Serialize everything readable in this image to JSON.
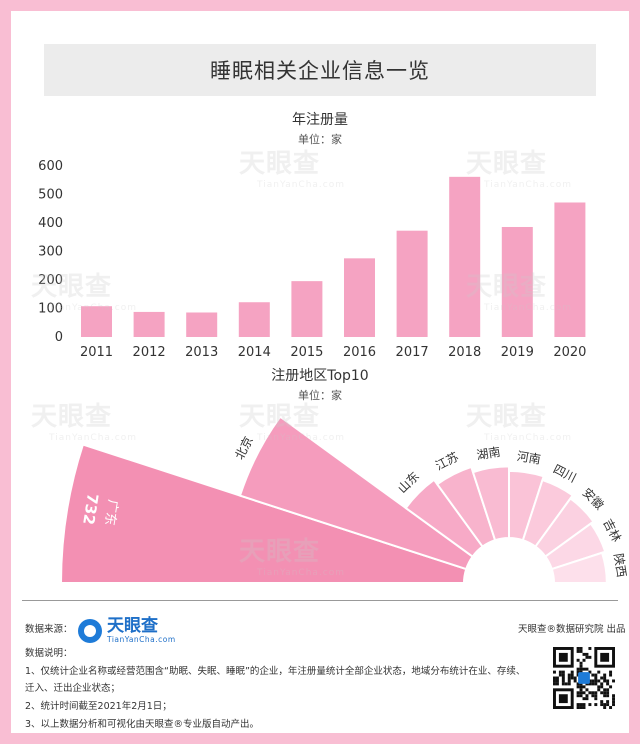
{
  "page": {
    "title": "睡眠相关企业信息一览",
    "watermark": {
      "cn": "天眼查",
      "en": "TianYanCha.com"
    }
  },
  "chart_data": [
    {
      "type": "bar",
      "title": "年注册量",
      "unit": "单位：家",
      "categories": [
        "2011",
        "2012",
        "2013",
        "2014",
        "2015",
        "2016",
        "2017",
        "2018",
        "2019",
        "2020"
      ],
      "values": [
        108,
        88,
        86,
        122,
        196,
        276,
        373,
        562,
        386,
        472
      ],
      "ylim": [
        0,
        600
      ],
      "yticks": [
        "0",
        "100",
        "200",
        "300",
        "400",
        "500",
        "600"
      ],
      "grid": false,
      "color": "#f5a3c2"
    },
    {
      "type": "pie",
      "title": "注册地区Top10",
      "unit": "单位：家",
      "categories": [
        "广东",
        "北京",
        "山东",
        "江苏",
        "湖南",
        "河南",
        "四川",
        "安徽",
        "吉林",
        "陕西"
      ],
      "values": [
        732,
        432,
        150,
        140,
        130,
        122,
        115,
        108,
        102,
        96
      ],
      "value_labels": [
        "732",
        "",
        "",
        "",
        "",
        "",
        "",
        "",
        "",
        ""
      ],
      "colors": [
        "#f390b3",
        "#f59cbd",
        "#f7aac7",
        "#f8b3cc",
        "#f9bbd2",
        "#fac3d7",
        "#fbcadc",
        "#fbd1e1",
        "#fcd8e6",
        "#fde0eb"
      ]
    }
  ],
  "footer": {
    "source_label": "数据来源：",
    "notes_label": "数据说明：",
    "logo_cn": "天眼查",
    "logo_en": "TianYanCha.com",
    "note1": "1、仅统计企业名称或经营范围含“助眠、失眠、睡眠”的企业，年注册量统计全部企业状态，地域分布统计在业、存续、",
    "note1b": "迁入、迁出企业状态；",
    "note2": "2、统计时间截至2021年2月1日；",
    "note3": "3、以上数据分析和可视化由天眼查®专业版自动产出。",
    "credit": "天眼查®数据研究院 出品"
  }
}
